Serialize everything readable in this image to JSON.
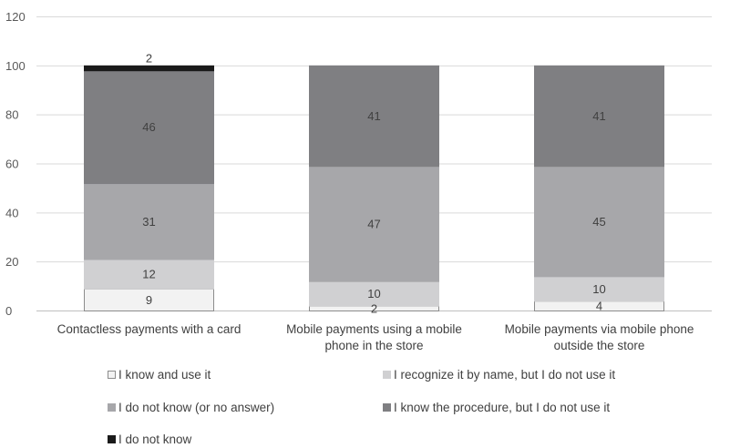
{
  "chart_data": {
    "type": "bar",
    "stacked": true,
    "title": "",
    "xlabel": "",
    "ylabel": "",
    "ylim": [
      0,
      120
    ],
    "yticks": [
      0,
      20,
      40,
      60,
      80,
      100,
      120
    ],
    "grid": true,
    "legend_position": "bottom",
    "categories": [
      [
        "Contactless payments with a card"
      ],
      [
        "Mobile payments using a mobile",
        "phone in the store"
      ],
      [
        "Mobile payments via mobile phone",
        "outside the store"
      ]
    ],
    "series": [
      {
        "name": "I know and use it",
        "values": [
          9,
          2,
          4
        ],
        "color": "#f2f2f2",
        "stroke": "#8c8c8c"
      },
      {
        "name": "I recognize it by name, but I do not use it",
        "values": [
          12,
          10,
          10
        ],
        "color": "#d0d0d2",
        "stroke": "#d0d0d2"
      },
      {
        "name": "I do not know (or no answer)",
        "values": [
          31,
          47,
          45
        ],
        "color": "#a7a7aa",
        "stroke": "#a7a7aa"
      },
      {
        "name": "I know the procedure, but I do not use it",
        "values": [
          46,
          41,
          41
        ],
        "color": "#7f7f82",
        "stroke": "#7f7f82"
      },
      {
        "name": "I do not know",
        "values": [
          2,
          0,
          0
        ],
        "color": "#1a1a1a",
        "stroke": "#1a1a1a"
      }
    ]
  }
}
